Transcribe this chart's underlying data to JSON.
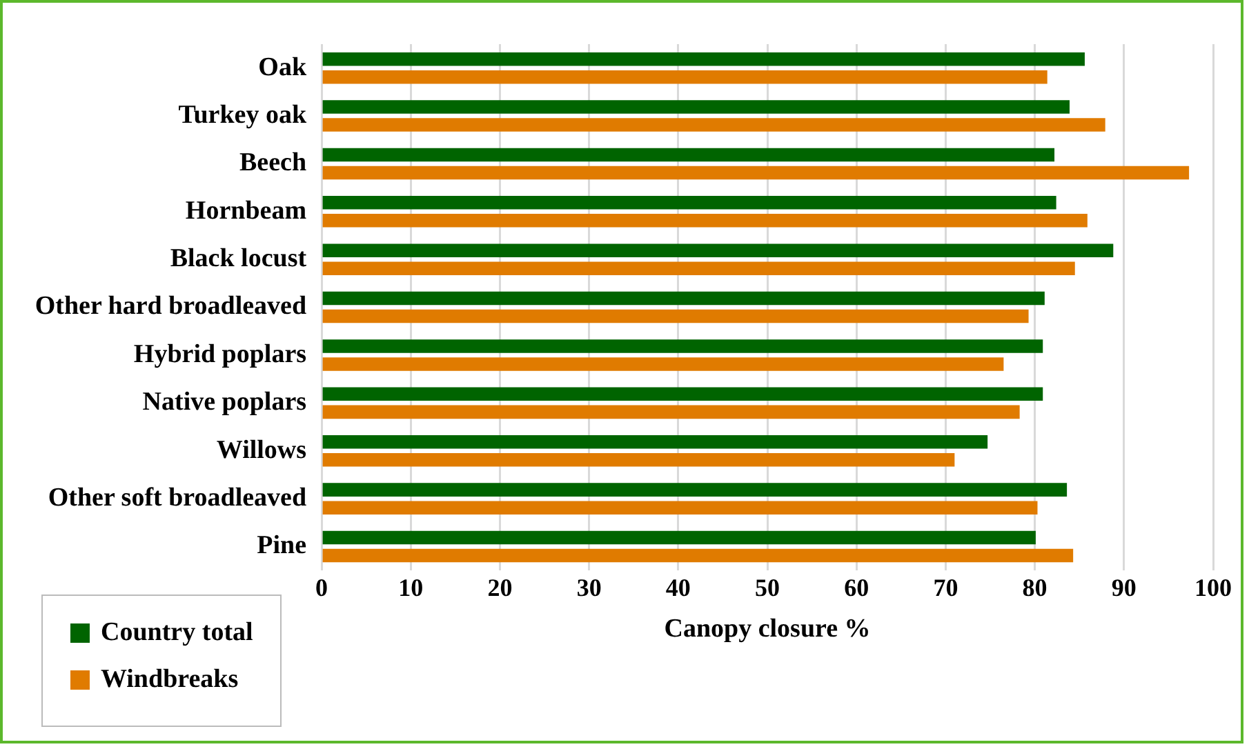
{
  "chart_data": {
    "type": "bar",
    "orientation": "horizontal",
    "xlabel": "Canopy closure %",
    "categories": [
      "Oak",
      "Turkey oak",
      "Beech",
      "Hornbeam",
      "Black locust",
      "Other hard broadleaved",
      "Hybrid poplars",
      "Native poplars",
      "Willows",
      "Other soft broadleaved",
      "Pine"
    ],
    "series": [
      {
        "name": "Country total",
        "color": "#006400",
        "values": [
          85.6,
          83.9,
          82.2,
          82.4,
          88.8,
          81.1,
          80.9,
          80.9,
          74.7,
          83.6,
          80.1
        ]
      },
      {
        "name": "Windbreaks",
        "color": "#e07b00",
        "values": [
          81.4,
          87.9,
          97.3,
          85.9,
          84.5,
          79.3,
          76.5,
          78.3,
          71.0,
          80.3,
          84.3
        ]
      }
    ],
    "xlim": [
      0,
      100
    ],
    "xticks": [
      0,
      10,
      20,
      30,
      40,
      50,
      60,
      70,
      80,
      90,
      100
    ],
    "grid": "x",
    "legend": "bottom left"
  }
}
